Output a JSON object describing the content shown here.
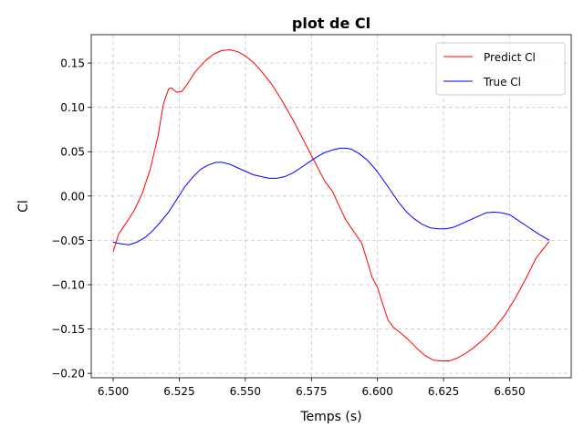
{
  "chart_data": {
    "type": "line",
    "title": "plot de Cl",
    "xlabel": "Temps (s)",
    "ylabel": "Cl",
    "xlim": [
      6.4917,
      6.6733
    ],
    "ylim": [
      -0.205,
      0.182
    ],
    "xticks": [
      6.5,
      6.525,
      6.55,
      6.575,
      6.6,
      6.625,
      6.65
    ],
    "xtick_labels": [
      "6.500",
      "6.525",
      "6.550",
      "6.575",
      "6.600",
      "6.625",
      "6.650"
    ],
    "yticks": [
      -0.2,
      -0.15,
      -0.1,
      -0.05,
      0.0,
      0.05,
      0.1,
      0.15
    ],
    "ytick_labels": [
      "−0.20",
      "−0.15",
      "−0.10",
      "−0.05",
      "0.00",
      "0.05",
      "0.10",
      "0.15"
    ],
    "grid": true,
    "legend_position": "top-right",
    "series": [
      {
        "name": "Predict Cl",
        "color": "#ff0000",
        "x": [
          6.5,
          6.502,
          6.505,
          6.508,
          6.511,
          6.514,
          6.517,
          6.519,
          6.521,
          6.522,
          6.524,
          6.526,
          6.528,
          6.531,
          6.535,
          6.538,
          6.541,
          6.544,
          6.547,
          6.55,
          6.553,
          6.556,
          6.56,
          6.564,
          6.568,
          6.572,
          6.576,
          6.58,
          6.583,
          6.585,
          6.588,
          6.591,
          6.594,
          6.596,
          6.598,
          6.6,
          6.602,
          6.604,
          6.606,
          6.609,
          6.612,
          6.615,
          6.618,
          6.621,
          6.624,
          6.627,
          6.63,
          6.633,
          6.636,
          6.64,
          6.644,
          6.648,
          6.652,
          6.656,
          6.66,
          6.665
        ],
        "y": [
          -0.063,
          -0.043,
          -0.03,
          -0.016,
          0.003,
          0.03,
          0.068,
          0.104,
          0.121,
          0.122,
          0.117,
          0.118,
          0.126,
          0.14,
          0.153,
          0.16,
          0.164,
          0.165,
          0.163,
          0.158,
          0.151,
          0.141,
          0.126,
          0.107,
          0.086,
          0.063,
          0.04,
          0.017,
          0.005,
          -0.008,
          -0.027,
          -0.04,
          -0.053,
          -0.072,
          -0.092,
          -0.103,
          -0.122,
          -0.14,
          -0.148,
          -0.155,
          -0.163,
          -0.172,
          -0.18,
          -0.185,
          -0.186,
          -0.186,
          -0.183,
          -0.178,
          -0.172,
          -0.162,
          -0.15,
          -0.135,
          -0.116,
          -0.094,
          -0.07,
          -0.051
        ]
      },
      {
        "name": "True Cl",
        "color": "#0000ff",
        "x": [
          6.5,
          6.503,
          6.506,
          6.509,
          6.512,
          6.515,
          6.518,
          6.521,
          6.524,
          6.527,
          6.53,
          6.533,
          6.536,
          6.539,
          6.541,
          6.544,
          6.547,
          6.55,
          6.553,
          6.556,
          6.559,
          6.562,
          6.565,
          6.568,
          6.571,
          6.574,
          6.577,
          6.58,
          6.583,
          6.586,
          6.588,
          6.59,
          6.593,
          6.596,
          6.599,
          6.602,
          6.605,
          6.608,
          6.611,
          6.614,
          6.617,
          6.62,
          6.623,
          6.626,
          6.629,
          6.632,
          6.635,
          6.638,
          6.641,
          6.644,
          6.647,
          6.65,
          6.653,
          6.656,
          6.66,
          6.665
        ],
        "y": [
          -0.052,
          -0.054,
          -0.055,
          -0.052,
          -0.047,
          -0.039,
          -0.029,
          -0.018,
          -0.004,
          0.01,
          0.021,
          0.03,
          0.035,
          0.038,
          0.038,
          0.036,
          0.032,
          0.028,
          0.024,
          0.022,
          0.02,
          0.02,
          0.022,
          0.026,
          0.032,
          0.038,
          0.044,
          0.049,
          0.052,
          0.054,
          0.054,
          0.053,
          0.048,
          0.041,
          0.031,
          0.019,
          0.006,
          -0.007,
          -0.018,
          -0.026,
          -0.032,
          -0.036,
          -0.037,
          -0.037,
          -0.035,
          -0.031,
          -0.027,
          -0.023,
          -0.019,
          -0.018,
          -0.019,
          -0.021,
          -0.027,
          -0.033,
          -0.041,
          -0.05
        ]
      }
    ]
  }
}
